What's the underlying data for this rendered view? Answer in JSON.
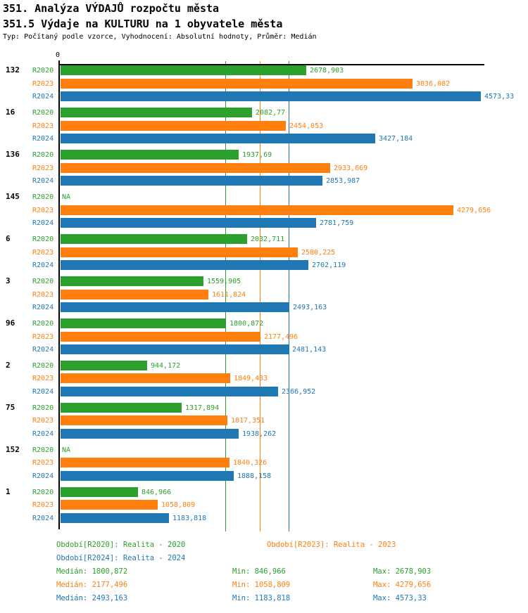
{
  "colors": {
    "R2020": "#2ca02c",
    "R2023": "#ff7f0e",
    "R2024": "#1f77b4",
    "axis": "#000000"
  },
  "chart_data": {
    "type": "bar",
    "orientation": "horizontal",
    "title": "351. Analýza VÝDAJŮ rozpočtu města",
    "subtitle": "351.5 Výdaje na KULTURU na 1 obyvatele města",
    "meta": "Typ: Počítaný podle vzorce, Vyhodnocení: Absolutní hodnoty, Průměr: Medián",
    "x_axis": {
      "origin_label": "0",
      "min": 0,
      "max": 4600,
      "grid": false
    },
    "series_names": [
      "R2020",
      "R2023",
      "R2024"
    ],
    "na_label": "NA",
    "groups": [
      {
        "label": "132",
        "values": [
          2678.903,
          3836.082,
          4573.33
        ],
        "value_labels": [
          "2678,903",
          "3836,082",
          "4573,33"
        ]
      },
      {
        "label": "16",
        "values": [
          2082.77,
          2454.053,
          3427.184
        ],
        "value_labels": [
          "2082,77",
          "2454,053",
          "3427,184"
        ]
      },
      {
        "label": "136",
        "values": [
          1937.69,
          2933.669,
          2853.987
        ],
        "value_labels": [
          "1937,69",
          "2933,669",
          "2853,987"
        ]
      },
      {
        "label": "145",
        "values": [
          null,
          4279.656,
          2781.759
        ],
        "value_labels": [
          "NA",
          "4279,656",
          "2781,759"
        ]
      },
      {
        "label": "6",
        "values": [
          2032.711,
          2580.225,
          2702.119
        ],
        "value_labels": [
          "2032,711",
          "2580,225",
          "2702,119"
        ]
      },
      {
        "label": "3",
        "values": [
          1559.905,
          1611.824,
          2493.163
        ],
        "value_labels": [
          "1559,905",
          "1611,824",
          "2493,163"
        ]
      },
      {
        "label": "96",
        "values": [
          1800.872,
          2177.496,
          2481.143
        ],
        "value_labels": [
          "1800,872",
          "2177,496",
          "2481,143"
        ]
      },
      {
        "label": "2",
        "values": [
          944.172,
          1849.483,
          2366.952
        ],
        "value_labels": [
          "944,172",
          "1849,483",
          "2366,952"
        ]
      },
      {
        "label": "75",
        "values": [
          1317.894,
          1817.351,
          1938.262
        ],
        "value_labels": [
          "1317,894",
          "1817,351",
          "1938,262"
        ]
      },
      {
        "label": "152",
        "values": [
          null,
          1840.326,
          1888.158
        ],
        "value_labels": [
          "NA",
          "1840,326",
          "1888,158"
        ]
      },
      {
        "label": "1",
        "values": [
          846.966,
          1058.809,
          1183.818
        ],
        "value_labels": [
          "846,966",
          "1058,809",
          "1183,818"
        ]
      }
    ],
    "median_lines": {
      "R2020": 1800.872,
      "R2023": 2177.496,
      "R2024": 2493.163
    },
    "legend_position": "bottom"
  },
  "footer": {
    "legend": [
      {
        "series": "R2020",
        "text": "Období[R2020]: Realita - 2020"
      },
      {
        "series": "R2023",
        "text": "Období[R2023]: Realita - 2023"
      },
      {
        "series": "R2024",
        "text": "Období[R2024]: Realita - 2024"
      }
    ],
    "stats": [
      {
        "series": "R2020",
        "median": "Medián: 1800,872",
        "min": "Min: 846,966",
        "max": "Max: 2678,903"
      },
      {
        "series": "R2023",
        "median": "Medián: 2177,496",
        "min": "Min: 1058,809",
        "max": "Max: 4279,656"
      },
      {
        "series": "R2024",
        "median": "Medián: 2493,163",
        "min": "Min: 1183,818",
        "max": "Max: 4573,33"
      }
    ]
  }
}
